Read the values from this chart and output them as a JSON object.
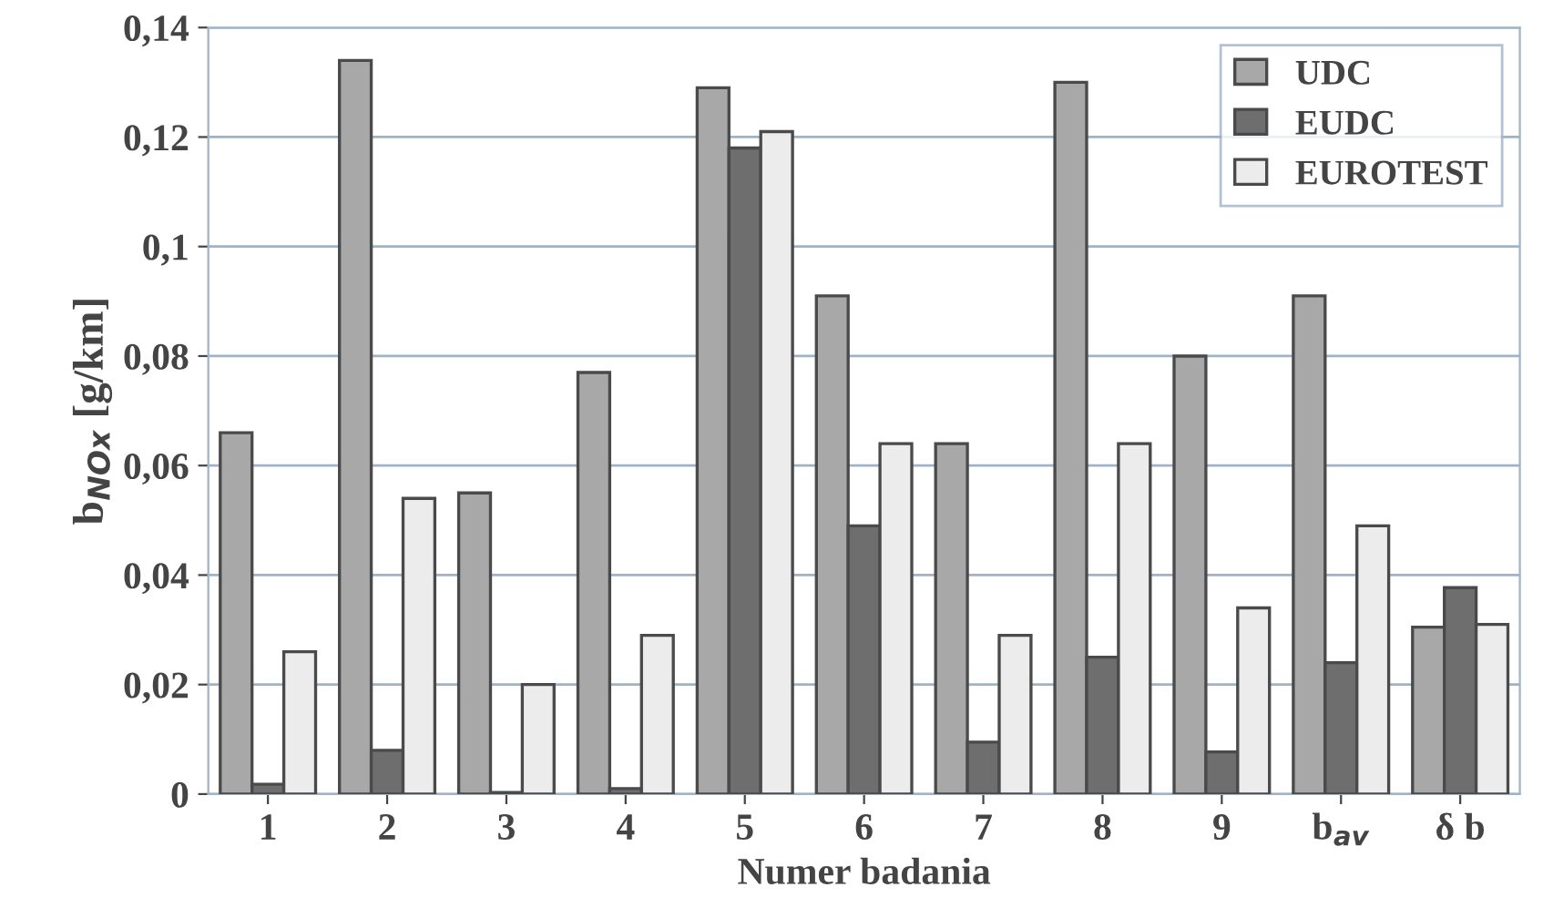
{
  "chart_data": {
    "type": "bar",
    "xlabel": "Numer badania",
    "ylabel": "b$_{NOx}$ [g/km]",
    "categories": [
      "1",
      "2",
      "3",
      "4",
      "5",
      "6",
      "7",
      "8",
      "9",
      "b$_{av}$",
      "δ b"
    ],
    "series": [
      {
        "name": "UDC",
        "color": "#a8a8a8",
        "values": [
          0.066,
          0.134,
          0.055,
          0.077,
          0.129,
          0.091,
          0.064,
          0.13,
          0.08,
          0.091,
          0.0305
        ]
      },
      {
        "name": "EUDC",
        "color": "#6e6e6e",
        "values": [
          0.0018,
          0.008,
          0.0003,
          0.001,
          0.118,
          0.049,
          0.0095,
          0.025,
          0.0077,
          0.024,
          0.0377
        ]
      },
      {
        "name": "EUROTEST",
        "color": "#ececec",
        "values": [
          0.026,
          0.054,
          0.02,
          0.029,
          0.121,
          0.064,
          0.029,
          0.064,
          0.034,
          0.049,
          0.031
        ]
      }
    ],
    "ylim": [
      0,
      0.14
    ],
    "yticks": [
      0,
      {
        "value": 0.02,
        "label": "0,02"
      },
      {
        "value": 0.04,
        "label": "0,04"
      },
      {
        "value": 0.06,
        "label": "0,06"
      },
      {
        "value": 0.08,
        "label": "0,08"
      },
      {
        "value": 0.1,
        "label": "0,1"
      },
      {
        "value": 0.12,
        "label": "0,12"
      },
      {
        "value": 0.14,
        "label": "0,14"
      }
    ],
    "grid": "y",
    "legend": "top right"
  }
}
